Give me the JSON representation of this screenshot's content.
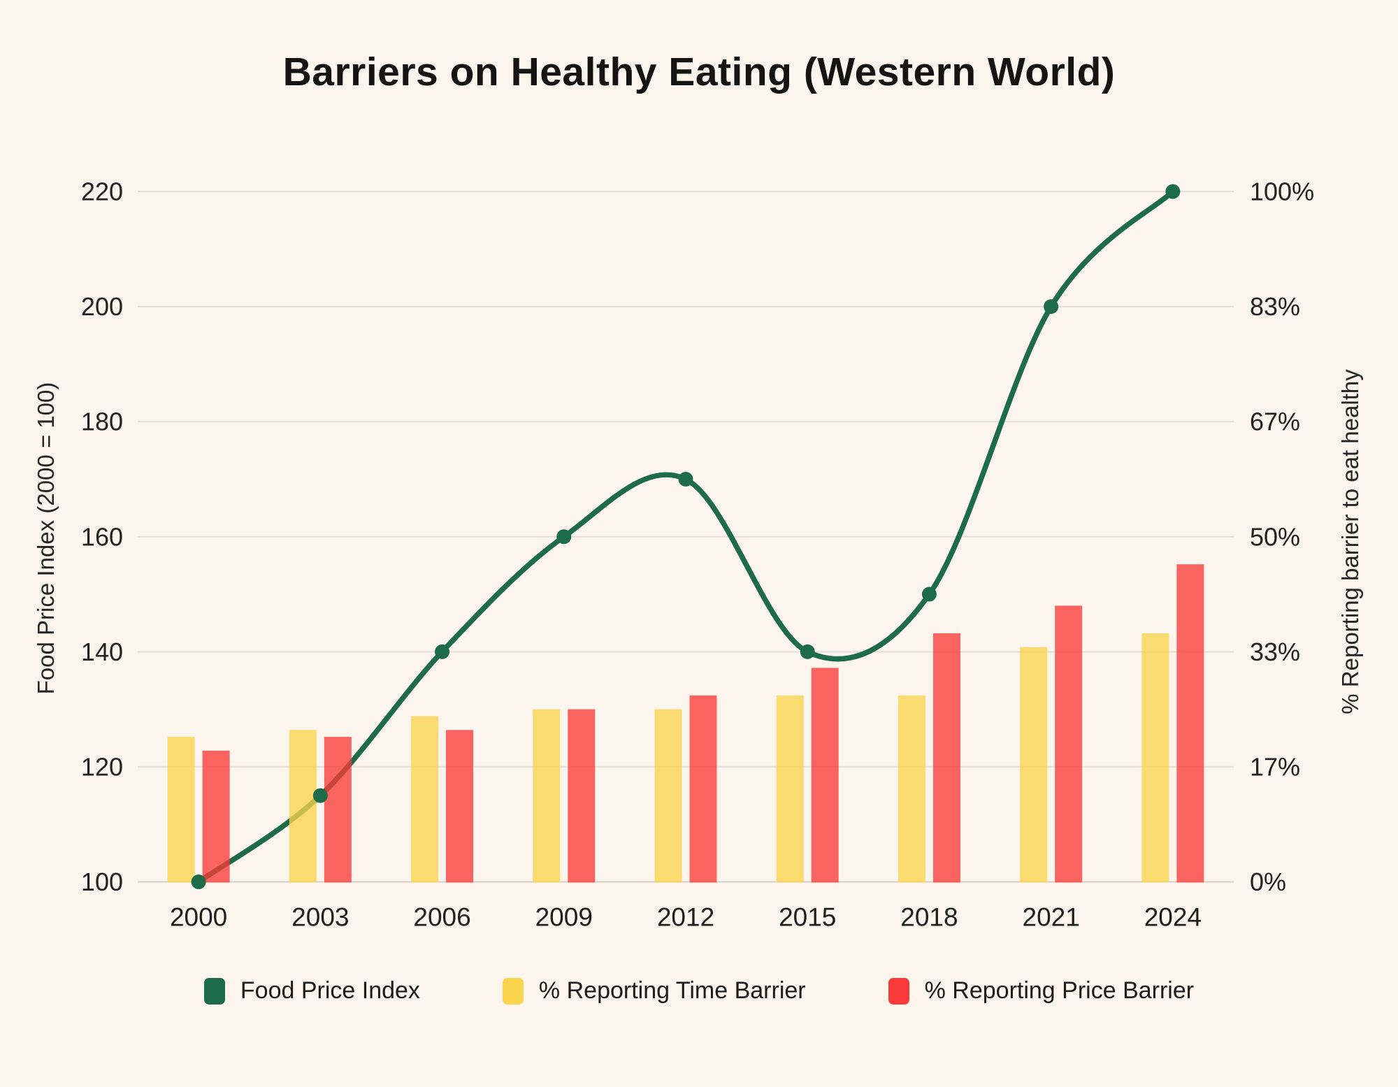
{
  "title": "Barriers on Healthy Eating (Western World)",
  "chart_data": {
    "type": "combo (line + grouped bars)",
    "categories": [
      "2000",
      "2003",
      "2006",
      "2009",
      "2012",
      "2015",
      "2018",
      "2021",
      "2024"
    ],
    "series": [
      {
        "name": "Food Price Index",
        "type": "line",
        "axis": "left",
        "color": "#1E6B4A",
        "values": [
          100,
          115,
          140,
          160,
          170,
          140,
          150,
          200,
          220
        ]
      },
      {
        "name": "% Reporting Time Barrier",
        "type": "bar",
        "axis": "right",
        "color": "#F9D44C",
        "values": [
          21,
          22,
          24,
          25,
          25,
          27,
          27,
          34,
          36
        ]
      },
      {
        "name": "% Reporting Price Barrier",
        "type": "bar",
        "axis": "right",
        "color": "#F83B38",
        "values": [
          19,
          21,
          22,
          25,
          27,
          31,
          36,
          40,
          46
        ]
      }
    ],
    "left_axis": {
      "title": "Food Price Index (2000 = 100)",
      "min": 100,
      "max": 220,
      "ticks": [
        "100",
        "120",
        "140",
        "160",
        "180",
        "200",
        "220"
      ]
    },
    "right_axis": {
      "title": "% Reporting barrier to eat healthy",
      "min": 0,
      "max": 100,
      "ticks": [
        "0%",
        "17%",
        "33%",
        "50%",
        "67%",
        "83%",
        "100%"
      ]
    },
    "grid": true,
    "legend_position": "bottom"
  },
  "colors": {
    "background": "#FBF5EE",
    "grid": "#E4DED6",
    "baseline": "#D6D0C8",
    "tick_text": "#222222",
    "line": "#1E6B4A",
    "bar_time": "#F9D44C",
    "bar_price": "#F83B38"
  }
}
